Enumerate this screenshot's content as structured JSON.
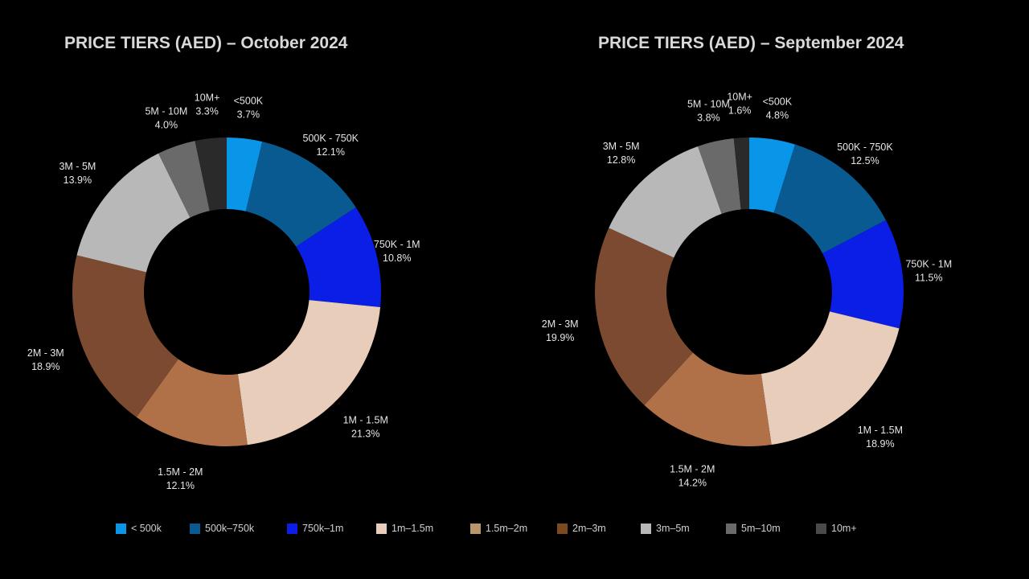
{
  "chart_data": [
    {
      "type": "pie",
      "title": "PRICE TIERS (AED) – October 2024",
      "categories": [
        "<500K",
        "500K - 750K",
        "750K - 1M",
        "1M - 1.5M",
        "1.5M - 2M",
        "2M - 3M",
        "3M - 5M",
        "5M - 10M",
        "10M+"
      ],
      "values": [
        3.7,
        12.1,
        10.8,
        21.3,
        12.1,
        18.9,
        13.9,
        4.0,
        3.3
      ],
      "value_labels": [
        "3.7%",
        "12.1%",
        "10.8%",
        "21.3%",
        "12.1%",
        "18.9%",
        "13.9%",
        "4.0%",
        "3.3%"
      ],
      "colors": [
        "#0a96e8",
        "#0a5a92",
        "#0a1ee6",
        "#e8cdbb",
        "#b07048",
        "#7b4a30",
        "#b8b8b8",
        "#6a6a6a",
        "#2a2a2a"
      ],
      "donut": true
    },
    {
      "type": "pie",
      "title": "PRICE TIERS (AED) – September 2024",
      "categories": [
        "<500K",
        "500K - 750K",
        "750K - 1M",
        "1M - 1.5M",
        "1.5M - 2M",
        "2M - 3M",
        "3M - 5M",
        "5M - 10M",
        "10M+"
      ],
      "values": [
        4.8,
        12.5,
        11.5,
        18.9,
        14.2,
        19.9,
        12.8,
        3.8,
        1.6
      ],
      "value_labels": [
        "4.8%",
        "12.5%",
        "11.5%",
        "18.9%",
        "14.2%",
        "19.9%",
        "12.8%",
        "3.8%",
        "1.6%"
      ],
      "colors": [
        "#0a96e8",
        "#0a5a92",
        "#0a1ee6",
        "#e8cdbb",
        "#b07048",
        "#7b4a30",
        "#b8b8b8",
        "#6a6a6a",
        "#2a2a2a"
      ],
      "donut": true
    }
  ],
  "legend": [
    {
      "label": "< 500k",
      "color": "#0a96e8"
    },
    {
      "label": "500k–750k",
      "color": "#0a5a92"
    },
    {
      "label": "750k–1m",
      "color": "#0a1ee6"
    },
    {
      "label": "1m–1.5m",
      "color": "#e8cdbb"
    },
    {
      "label": "1.5m–2m",
      "color": "#b8956a"
    },
    {
      "label": "2m–3m",
      "color": "#7b4a1e"
    },
    {
      "label": "3m–5m",
      "color": "#b8b8b8"
    },
    {
      "label": "5m–10m",
      "color": "#6a6a6a"
    },
    {
      "label": "10m+",
      "color": "#4a4a4a"
    }
  ]
}
